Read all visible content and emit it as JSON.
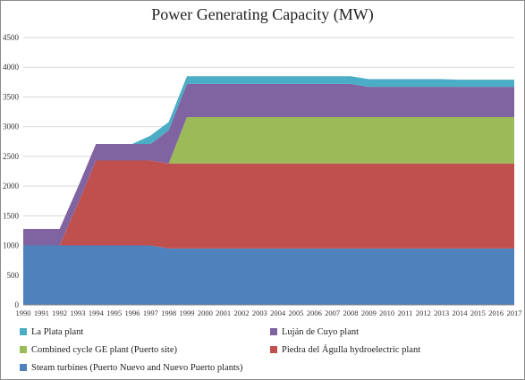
{
  "chart_data": {
    "type": "area",
    "stacked": true,
    "title": "Power Generating Capacity (MW)",
    "xlabel": "",
    "ylabel": "",
    "ylim": [
      0,
      4500
    ],
    "y_ticks": [
      0,
      500,
      1000,
      1500,
      2000,
      2500,
      3000,
      3500,
      4000,
      4500
    ],
    "grid": "horizontal",
    "legend_position": "bottom",
    "x": [
      "1990",
      "1991",
      "1992",
      "1993",
      "1994",
      "1995",
      "1996",
      "1997",
      "1998",
      "1999",
      "2000",
      "2001",
      "2002",
      "2003",
      "2004",
      "2005",
      "2006",
      "2007",
      "2008",
      "2009",
      "2010",
      "2011",
      "2012",
      "2013",
      "2014",
      "2015",
      "2016",
      "2017"
    ],
    "series": [
      {
        "name": "Steam turbines (Puerto Nuevo and Nuevo Puerto plants)",
        "color": "#4f81bd",
        "values": [
          1000,
          1000,
          1000,
          1000,
          1000,
          1000,
          1000,
          1000,
          950,
          950,
          950,
          950,
          950,
          950,
          950,
          950,
          950,
          950,
          950,
          950,
          950,
          950,
          950,
          950,
          950,
          950,
          950,
          950
        ]
      },
      {
        "name": "Piedra del Águlla hydroelectric plant",
        "color": "#c0504d",
        "values": [
          0,
          0,
          0,
          700,
          1430,
          1430,
          1430,
          1430,
          1430,
          1430,
          1430,
          1430,
          1430,
          1430,
          1430,
          1430,
          1430,
          1430,
          1430,
          1430,
          1430,
          1430,
          1430,
          1430,
          1430,
          1430,
          1430,
          1430
        ]
      },
      {
        "name": "Combined cycle GE plant (Puerto site)",
        "color": "#9bbb59",
        "values": [
          0,
          0,
          0,
          0,
          0,
          0,
          0,
          0,
          0,
          780,
          780,
          780,
          780,
          780,
          780,
          780,
          780,
          780,
          780,
          780,
          780,
          780,
          780,
          780,
          780,
          780,
          780,
          780
        ]
      },
      {
        "name": "Luján de Cuyo plant",
        "color": "#8064a2",
        "values": [
          280,
          280,
          280,
          280,
          280,
          280,
          280,
          280,
          560,
          560,
          560,
          560,
          560,
          560,
          560,
          560,
          560,
          560,
          560,
          510,
          510,
          510,
          510,
          510,
          510,
          510,
          510,
          510
        ]
      },
      {
        "name": "La Plata plant",
        "color": "#4bacc6",
        "values": [
          0,
          0,
          0,
          0,
          0,
          0,
          0,
          140,
          140,
          130,
          130,
          130,
          130,
          130,
          130,
          130,
          130,
          130,
          130,
          130,
          130,
          130,
          130,
          130,
          120,
          120,
          120,
          120
        ]
      }
    ],
    "legend": [
      {
        "label": "La Plata plant",
        "color": "#4bacc6"
      },
      {
        "label": "Luján de Cuyo plant",
        "color": "#8064a2"
      },
      {
        "label": "Combined cycle GE plant (Puerto site)",
        "color": "#9bbb59"
      },
      {
        "label": "Piedra del Águlla hydroelectric plant",
        "color": "#c0504d"
      },
      {
        "label": "Steam turbines (Puerto Nuevo and Nuevo Puerto plants)",
        "color": "#4f81bd"
      }
    ]
  }
}
